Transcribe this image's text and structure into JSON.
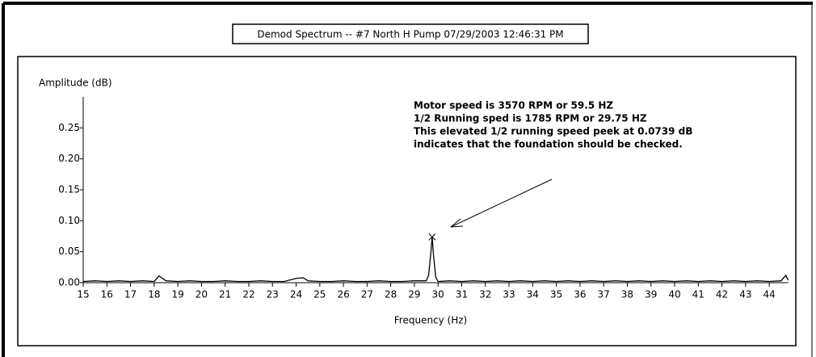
{
  "chart_data": {
    "type": "line",
    "title": "Demod Spectrum -- #7 North H Pump  07/29/2003 12:46:31 PM",
    "y_label": "Amplitude (dB)",
    "x_label": "Frequency (Hz)",
    "annotation_lines": [
      "Motor speed is 3570 RPM or 59.5 HZ",
      "1/2 Running sped is 1785 RPM or 29.75 HZ",
      "This elevated 1/2 running speed peek at 0.0739 dB",
      "indicates that the foundation should be checked."
    ],
    "peak": {
      "x": 29.75,
      "y": 0.0739
    },
    "x": [
      15,
      15.5,
      16,
      16.5,
      17,
      17.5,
      18,
      18.2,
      18.5,
      19,
      19.5,
      20,
      20.5,
      21,
      21.5,
      22,
      22.5,
      23,
      23.5,
      24,
      24.3,
      24.5,
      25,
      25.5,
      26,
      26.5,
      27,
      27.5,
      28,
      28.5,
      29,
      29.5,
      29.6,
      29.7,
      29.75,
      29.8,
      29.9,
      30,
      30.5,
      31,
      31.5,
      32,
      32.5,
      33,
      33.5,
      34,
      34.5,
      35,
      35.5,
      36,
      36.5,
      37,
      37.5,
      38,
      38.5,
      39,
      39.5,
      40,
      40.5,
      41,
      41.5,
      42,
      42.5,
      43,
      43.5,
      44,
      44.5,
      44.7,
      44.8
    ],
    "series": [
      {
        "color": "#000000",
        "values": [
          0.002,
          0.003,
          0.002,
          0.003,
          0.002,
          0.003,
          0.002,
          0.011,
          0.003,
          0.002,
          0.003,
          0.002,
          0.002,
          0.003,
          0.002,
          0.002,
          0.003,
          0.002,
          0.002,
          0.007,
          0.008,
          0.003,
          0.002,
          0.002,
          0.003,
          0.002,
          0.002,
          0.003,
          0.002,
          0.002,
          0.003,
          0.003,
          0.012,
          0.05,
          0.0739,
          0.048,
          0.009,
          0.002,
          0.003,
          0.002,
          0.003,
          0.002,
          0.003,
          0.002,
          0.003,
          0.002,
          0.003,
          0.002,
          0.003,
          0.002,
          0.003,
          0.002,
          0.003,
          0.002,
          0.003,
          0.002,
          0.003,
          0.002,
          0.003,
          0.002,
          0.003,
          0.002,
          0.003,
          0.002,
          0.003,
          0.002,
          0.003,
          0.012,
          0.004
        ]
      }
    ],
    "xlim": [
      15,
      44.8
    ],
    "ylim": [
      0,
      0.3
    ],
    "xticks": [
      15,
      16,
      17,
      18,
      19,
      20,
      21,
      22,
      23,
      24,
      25,
      26,
      27,
      28,
      29,
      30,
      31,
      32,
      33,
      34,
      35,
      36,
      37,
      38,
      39,
      40,
      41,
      42,
      43,
      44
    ],
    "yticks": [
      {
        "value": 0,
        "label": "0.00"
      },
      {
        "value": 0.05,
        "label": "0.05"
      },
      {
        "value": 0.1,
        "label": "0.10"
      },
      {
        "value": 0.15,
        "label": "0.15"
      },
      {
        "value": 0.2,
        "label": "0.20"
      },
      {
        "value": 0.25,
        "label": "0.25"
      }
    ]
  }
}
